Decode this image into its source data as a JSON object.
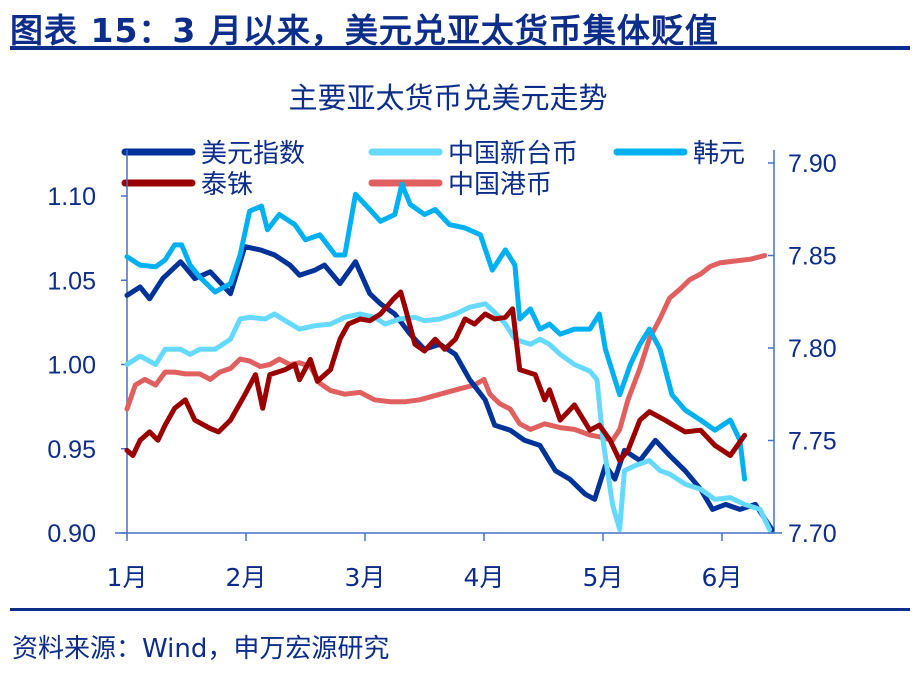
{
  "header": {
    "title": "图表 15：3 月以来，美元兑亚太货币集体贬值"
  },
  "footer": {
    "source": "资料来源：Wind，申万宏源研究"
  },
  "chart_data": {
    "type": "line",
    "title": "主要亚太货币兑美元走势",
    "x_tick_labels": [
      "1月",
      "2月",
      "3月",
      "4月",
      "5月",
      "6月"
    ],
    "x_ticks": [
      0,
      1,
      2,
      3,
      4,
      5
    ],
    "x_unit": "month position (0 = start of Jan)",
    "y_left": {
      "range": [
        0.9,
        1.1
      ],
      "ticks": [
        0.9,
        0.95,
        1.0,
        1.05,
        1.1
      ],
      "tick_labels": [
        "0.90",
        "0.95",
        "1.00",
        "1.05",
        "1.10"
      ]
    },
    "y_right": {
      "range": [
        7.7,
        7.9
      ],
      "ticks": [
        7.7,
        7.75,
        7.8,
        7.85,
        7.9
      ],
      "tick_labels": [
        "7.70",
        "7.75",
        "7.80",
        "7.85",
        "7.90"
      ]
    },
    "grid": false,
    "legend": "top",
    "series": [
      {
        "name": "美元指数",
        "color": "#003399",
        "axis": "left",
        "x": [
          0,
          0.11,
          0.19,
          0.3,
          0.45,
          0.57,
          0.7,
          0.87,
          0.99,
          1.12,
          1.24,
          1.37,
          1.45,
          1.58,
          1.66,
          1.79,
          1.92,
          2.04,
          2.13,
          2.25,
          2.38,
          2.5,
          2.63,
          2.76,
          2.88,
          3.01,
          3.09,
          3.22,
          3.34,
          3.47,
          3.6,
          3.72,
          3.85,
          3.93,
          4.02,
          4.1,
          4.18,
          4.31,
          4.44,
          4.56,
          4.69,
          4.82,
          4.92,
          5.03,
          5.15,
          5.28,
          5.42
        ],
        "y": [
          1.041,
          1.046,
          1.039,
          1.051,
          1.061,
          1.051,
          1.055,
          1.042,
          1.07,
          1.068,
          1.065,
          1.059,
          1.053,
          1.056,
          1.059,
          1.048,
          1.061,
          1.042,
          1.036,
          1.03,
          1.018,
          1.009,
          1.012,
          1.006,
          0.991,
          0.979,
          0.964,
          0.961,
          0.955,
          0.952,
          0.937,
          0.932,
          0.923,
          0.92,
          0.94,
          0.932,
          0.949,
          0.943,
          0.955,
          0.946,
          0.937,
          0.926,
          0.914,
          0.917,
          0.914,
          0.917,
          0.902
        ]
      },
      {
        "name": "中国新台币",
        "color": "#66d9ff",
        "axis": "left",
        "x": [
          0,
          0.11,
          0.24,
          0.32,
          0.45,
          0.53,
          0.61,
          0.74,
          0.87,
          0.95,
          1.03,
          1.16,
          1.24,
          1.33,
          1.45,
          1.58,
          1.71,
          1.83,
          1.96,
          2.08,
          2.17,
          2.29,
          2.42,
          2.5,
          2.63,
          2.76,
          2.88,
          3.01,
          3.09,
          3.18,
          3.26,
          3.39,
          3.47,
          3.55,
          3.64,
          3.76,
          3.89,
          3.95,
          4.0,
          4.08,
          4.14,
          4.18,
          4.27,
          4.39,
          4.48,
          4.56,
          4.69,
          4.82,
          4.94,
          5.07,
          5.19,
          5.32,
          5.4
        ],
        "y": [
          1.0,
          1.005,
          1.0,
          1.009,
          1.009,
          1.006,
          1.009,
          1.009,
          1.015,
          1.027,
          1.028,
          1.027,
          1.03,
          1.026,
          1.021,
          1.023,
          1.024,
          1.028,
          1.03,
          1.028,
          1.024,
          1.027,
          1.028,
          1.026,
          1.027,
          1.03,
          1.034,
          1.036,
          1.031,
          1.024,
          1.015,
          1.012,
          1.015,
          1.012,
          1.006,
          1.0,
          0.996,
          0.991,
          0.955,
          0.917,
          0.902,
          0.937,
          0.94,
          0.943,
          0.937,
          0.935,
          0.929,
          0.926,
          0.92,
          0.921,
          0.917,
          0.914,
          0.902
        ]
      },
      {
        "name": "韩元",
        "color": "#00b0f0",
        "axis": "left",
        "x": [
          0,
          0.11,
          0.24,
          0.32,
          0.4,
          0.46,
          0.53,
          0.61,
          0.74,
          0.87,
          0.95,
          1.03,
          1.13,
          1.18,
          1.28,
          1.41,
          1.5,
          1.62,
          1.75,
          1.83,
          1.92,
          2.04,
          2.13,
          2.25,
          2.31,
          2.38,
          2.5,
          2.59,
          2.71,
          2.84,
          2.97,
          3.07,
          3.18,
          3.26,
          3.3,
          3.39,
          3.47,
          3.55,
          3.64,
          3.76,
          3.89,
          3.97,
          4.02,
          4.14,
          4.23,
          4.31,
          4.39,
          4.48,
          4.58,
          4.69,
          4.82,
          4.94,
          5.07,
          5.15,
          5.19
        ],
        "y": [
          1.064,
          1.059,
          1.058,
          1.062,
          1.071,
          1.071,
          1.059,
          1.052,
          1.043,
          1.048,
          1.065,
          1.091,
          1.094,
          1.08,
          1.089,
          1.083,
          1.074,
          1.077,
          1.065,
          1.065,
          1.101,
          1.092,
          1.085,
          1.089,
          1.107,
          1.095,
          1.089,
          1.092,
          1.083,
          1.081,
          1.077,
          1.056,
          1.068,
          1.059,
          1.027,
          1.033,
          1.021,
          1.024,
          1.018,
          1.021,
          1.021,
          1.03,
          1.009,
          0.982,
          1.0,
          1.012,
          1.021,
          1.009,
          0.982,
          0.973,
          0.967,
          0.961,
          0.967,
          0.955,
          0.932
        ]
      },
      {
        "name": "泰铢",
        "color": "#9b0000",
        "axis": "left",
        "x": [
          0,
          0.05,
          0.11,
          0.19,
          0.26,
          0.32,
          0.4,
          0.49,
          0.57,
          0.7,
          0.77,
          0.87,
          0.99,
          1.08,
          1.14,
          1.2,
          1.33,
          1.41,
          1.45,
          1.54,
          1.6,
          1.71,
          1.79,
          1.86,
          1.96,
          2.04,
          2.13,
          2.24,
          2.3,
          2.34,
          2.42,
          2.5,
          2.59,
          2.67,
          2.76,
          2.84,
          2.92,
          3.01,
          3.09,
          3.18,
          3.24,
          3.3,
          3.43,
          3.51,
          3.55,
          3.64,
          3.76,
          3.89,
          3.97,
          4.06,
          4.14,
          4.21,
          4.31,
          4.39,
          4.52,
          4.69,
          4.82,
          4.94,
          5.07,
          5.19
        ],
        "y": [
          0.949,
          0.946,
          0.955,
          0.96,
          0.955,
          0.964,
          0.974,
          0.979,
          0.967,
          0.962,
          0.96,
          0.967,
          0.982,
          0.994,
          0.974,
          0.994,
          0.997,
          1.0,
          0.991,
          1.003,
          0.99,
          0.997,
          1.015,
          1.024,
          1.027,
          1.026,
          1.03,
          1.039,
          1.043,
          1.033,
          1.012,
          1.008,
          1.015,
          1.009,
          1.015,
          1.027,
          1.024,
          1.03,
          1.027,
          1.028,
          1.033,
          0.997,
          0.994,
          0.979,
          0.985,
          0.967,
          0.976,
          0.961,
          0.964,
          0.955,
          0.943,
          0.949,
          0.967,
          0.972,
          0.967,
          0.96,
          0.961,
          0.952,
          0.946,
          0.958
        ]
      },
      {
        "name": "中国港币",
        "color": "#e06060",
        "axis": "right",
        "x": [
          0,
          0.07,
          0.15,
          0.24,
          0.32,
          0.4,
          0.49,
          0.61,
          0.7,
          0.78,
          0.87,
          0.95,
          1.03,
          1.12,
          1.2,
          1.28,
          1.37,
          1.45,
          1.54,
          1.62,
          1.71,
          1.83,
          1.96,
          2.08,
          2.21,
          2.34,
          2.46,
          2.63,
          2.8,
          2.92,
          3.0,
          3.05,
          3.13,
          3.22,
          3.3,
          3.39,
          3.51,
          3.64,
          3.76,
          3.89,
          3.97,
          4.08,
          4.14,
          4.21,
          4.31,
          4.39,
          4.48,
          4.56,
          4.65,
          4.73,
          4.82,
          4.9,
          4.98,
          5.11,
          5.24,
          5.36
        ],
        "y": [
          7.767,
          7.78,
          7.783,
          7.78,
          7.787,
          7.787,
          7.786,
          7.786,
          7.783,
          7.787,
          7.789,
          7.794,
          7.793,
          7.79,
          7.791,
          7.794,
          7.791,
          7.792,
          7.79,
          7.781,
          7.777,
          7.775,
          7.776,
          7.772,
          7.771,
          7.771,
          7.772,
          7.775,
          7.778,
          7.78,
          7.783,
          7.775,
          7.77,
          7.767,
          7.759,
          7.756,
          7.759,
          7.757,
          7.756,
          7.753,
          7.752,
          7.75,
          7.756,
          7.772,
          7.789,
          7.805,
          7.816,
          7.827,
          7.832,
          7.837,
          7.84,
          7.844,
          7.846,
          7.847,
          7.848,
          7.85
        ]
      }
    ]
  }
}
